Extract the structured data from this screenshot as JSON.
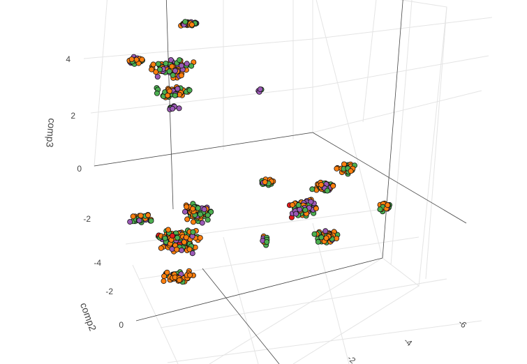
{
  "chart_data": {
    "type": "scatter",
    "dimensions": 3,
    "title": "",
    "axes": {
      "y": {
        "label": "comp2",
        "ticks": [
          -2,
          0
        ]
      },
      "z": {
        "label": "comp3",
        "ticks": [
          -4,
          -2,
          0,
          2,
          4
        ]
      },
      "x": {
        "label": "",
        "ticks": [
          -6,
          -4,
          -2
        ]
      }
    },
    "grid": true,
    "legend": "none",
    "colors": {
      "orange": "#ff7f0e",
      "green": "#4caf50",
      "purple": "#9b59b6",
      "red": "#e41a1c"
    },
    "clusters": [
      {
        "center": [
          270,
          34
        ],
        "spread": [
          22,
          5
        ],
        "count": 30,
        "weights": [
          0.5,
          0.35,
          0.15,
          0
        ]
      },
      {
        "center": [
          195,
          86
        ],
        "spread": [
          14,
          8
        ],
        "count": 22,
        "weights": [
          0.45,
          0.35,
          0.2,
          0
        ]
      },
      {
        "center": [
          245,
          98
        ],
        "spread": [
          42,
          15
        ],
        "count": 80,
        "weights": [
          0.45,
          0.25,
          0.28,
          0.02
        ]
      },
      {
        "center": [
          252,
          132
        ],
        "spread": [
          32,
          10
        ],
        "count": 55,
        "weights": [
          0.5,
          0.3,
          0.18,
          0.02
        ]
      },
      {
        "center": [
          248,
          155
        ],
        "spread": [
          14,
          6
        ],
        "count": 10,
        "weights": [
          0.1,
          0.45,
          0.35,
          0.1
        ]
      },
      {
        "center": [
          372,
          128
        ],
        "spread": [
          4,
          6
        ],
        "count": 4,
        "weights": [
          0,
          0.6,
          0.2,
          0.2
        ]
      },
      {
        "center": [
          497,
          242
        ],
        "spread": [
          20,
          9
        ],
        "count": 30,
        "weights": [
          0.55,
          0.35,
          0.08,
          0.02
        ]
      },
      {
        "center": [
          382,
          262
        ],
        "spread": [
          14,
          7
        ],
        "count": 20,
        "weights": [
          0.45,
          0.35,
          0.2,
          0
        ]
      },
      {
        "center": [
          465,
          268
        ],
        "spread": [
          22,
          10
        ],
        "count": 45,
        "weights": [
          0.55,
          0.3,
          0.15,
          0
        ]
      },
      {
        "center": [
          432,
          298
        ],
        "spread": [
          28,
          16
        ],
        "count": 85,
        "weights": [
          0.4,
          0.3,
          0.28,
          0.02
        ]
      },
      {
        "center": [
          550,
          296
        ],
        "spread": [
          10,
          9
        ],
        "count": 18,
        "weights": [
          0.6,
          0.35,
          0.05,
          0
        ]
      },
      {
        "center": [
          468,
          340
        ],
        "spread": [
          24,
          14
        ],
        "count": 55,
        "weights": [
          0.55,
          0.35,
          0.1,
          0
        ]
      },
      {
        "center": [
          381,
          345
        ],
        "spread": [
          8,
          10
        ],
        "count": 10,
        "weights": [
          0.5,
          0.3,
          0.2,
          0
        ]
      },
      {
        "center": [
          203,
          313
        ],
        "spread": [
          20,
          9
        ],
        "count": 30,
        "weights": [
          0.55,
          0.3,
          0.13,
          0.02
        ]
      },
      {
        "center": [
          283,
          305
        ],
        "spread": [
          26,
          18
        ],
        "count": 80,
        "weights": [
          0.6,
          0.3,
          0.1,
          0
        ]
      },
      {
        "center": [
          258,
          345
        ],
        "spread": [
          42,
          22
        ],
        "count": 140,
        "weights": [
          0.6,
          0.28,
          0.1,
          0.02
        ]
      },
      {
        "center": [
          253,
          398
        ],
        "spread": [
          30,
          12
        ],
        "count": 50,
        "weights": [
          0.7,
          0.2,
          0.08,
          0.02
        ]
      }
    ]
  }
}
